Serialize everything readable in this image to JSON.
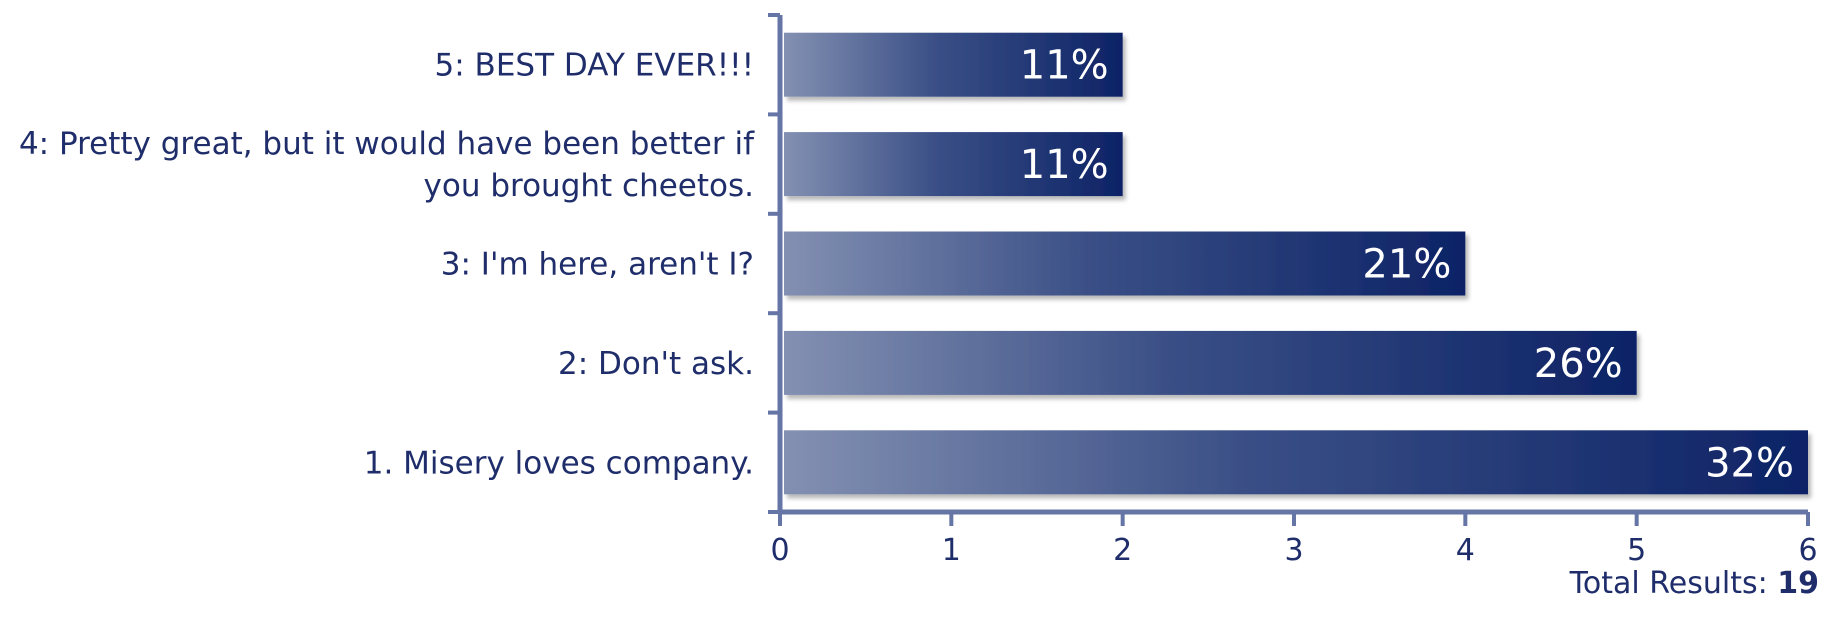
{
  "chart_data": {
    "type": "bar",
    "orientation": "horizontal",
    "categories": [
      "5: BEST DAY EVER!!!",
      "4: Pretty great, but it would have been better if you brought cheetos.",
      "3: I'm here, aren't I?",
      "2: Don't ask.",
      "1. Misery loves company."
    ],
    "category_lines": [
      [
        "5: BEST DAY EVER!!!"
      ],
      [
        "4: Pretty great, but it would have been better if",
        "you brought cheetos."
      ],
      [
        "3: I'm here, aren't I?"
      ],
      [
        "2: Don't ask."
      ],
      [
        "1. Misery loves company."
      ]
    ],
    "values": [
      2,
      2,
      4,
      5,
      6
    ],
    "data_labels": [
      "11%",
      "11%",
      "21%",
      "26%",
      "32%"
    ],
    "xlim": [
      0,
      6
    ],
    "x_ticks": [
      "0",
      "1",
      "2",
      "3",
      "4",
      "5",
      "6"
    ],
    "grid": false,
    "colors": {
      "bar_dark": "#0d2366",
      "bar_light": "#8390b2",
      "axis": "#6575a6",
      "text": "#1f2e6b"
    }
  },
  "footer": {
    "total_label": "Total Results:",
    "total_value": "19"
  }
}
